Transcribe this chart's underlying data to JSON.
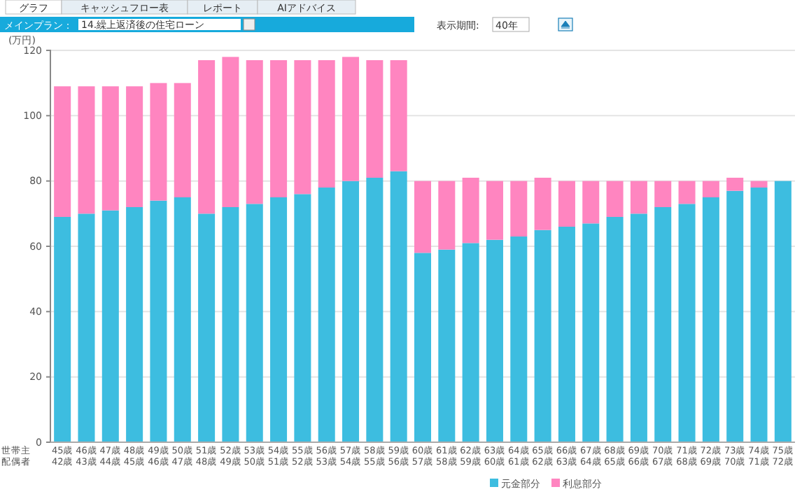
{
  "chart_data": {
    "type": "bar",
    "stacked": true,
    "ylabel": "(万円)",
    "categories": [
      "45歳\n42歳",
      "46歳\n43歳",
      "47歳\n44歳",
      "48歳\n45歳",
      "49歳\n46歳",
      "50歳\n47歳",
      "51歳\n48歳",
      "52歳\n49歳",
      "53歳\n50歳",
      "54歳\n51歳",
      "55歳\n52歳",
      "56歳\n53歳",
      "57歳\n54歳",
      "58歳\n55歳",
      "59歳\n56歳",
      "60歳\n57歳",
      "61歳\n58歳",
      "62歳\n59歳",
      "63歳\n60歳",
      "64歳\n61歳",
      "65歳\n62歳",
      "66歳\n63歳",
      "67歳\n64歳",
      "68歳\n65歳",
      "69歳\n66歳",
      "70歳\n67歳",
      "71歳\n68歳",
      "72歳\n69歳",
      "73歳\n70歳",
      "74歳\n71歳",
      "75歳\n72歳"
    ],
    "series": [
      {
        "name": "元金部分",
        "color": "#3dbde0",
        "values": [
          69,
          70,
          71,
          72,
          74,
          75,
          70,
          72,
          73,
          75,
          76,
          78,
          80,
          81,
          83,
          58,
          59,
          61,
          62,
          63,
          65,
          66,
          67,
          69,
          70,
          72,
          73,
          75,
          77,
          78,
          80
        ]
      },
      {
        "name": "利息部分",
        "color": "#ff85c0",
        "values": [
          40,
          39,
          38,
          37,
          36,
          35,
          47,
          46,
          44,
          42,
          41,
          39,
          38,
          36,
          34,
          22,
          21,
          20,
          18,
          17,
          16,
          14,
          13,
          11,
          10,
          8,
          7,
          5,
          4,
          2,
          0
        ]
      }
    ],
    "ylim": [
      0,
      120
    ],
    "yticks": [
      0,
      20,
      40,
      60,
      80,
      100,
      120
    ],
    "grid": "y",
    "legend": "bottom",
    "annotations": [
      "世帯主",
      "配偶者",
      "グラフ",
      "キャッシュフロー表",
      "レポート",
      "AIアドバイス",
      "メインプラン：",
      "14.繰上返済後の住宅ローン",
      "表示期間:",
      "40年"
    ]
  }
}
